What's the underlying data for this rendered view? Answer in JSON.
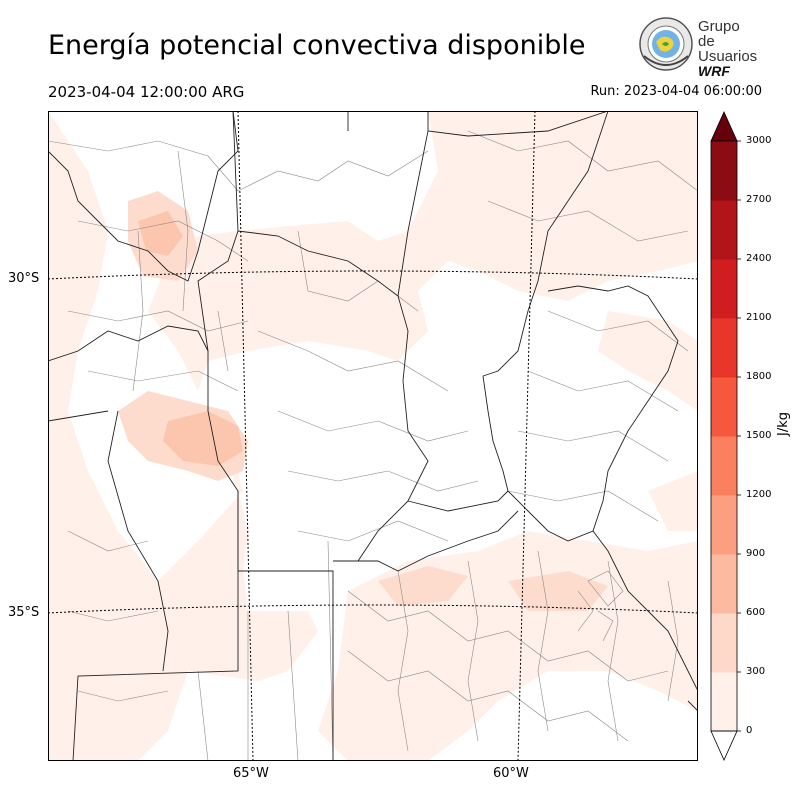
{
  "header": {
    "title": "Energía potencial convectiva disponible",
    "valid_time": "2023-04-04 12:00:00 ARG",
    "run_time": "Run: 2023-04-04 06:00:00"
  },
  "logo": {
    "line1": "Grupo de",
    "line2": "Usuarios",
    "line3": "WRF"
  },
  "map": {
    "lat_labels": [
      "30°S",
      "35°S"
    ],
    "lon_labels": [
      "65°W",
      "60°W"
    ],
    "field_colors": {
      "low": "#fff0ea",
      "mid": "#fddccd",
      "high": "#fcc5ad"
    }
  },
  "colorbar": {
    "unit": "J/kg",
    "levels": [
      0,
      300,
      600,
      900,
      1200,
      1500,
      1800,
      2100,
      2400,
      2700,
      3000
    ],
    "colors": [
      "#fff0ea",
      "#fed9c9",
      "#fcbba0",
      "#fc9f80",
      "#fb8060",
      "#f6583e",
      "#e9362b",
      "#d01d1f",
      "#b11419",
      "#8c0c14",
      "#67000d"
    ],
    "extend_top_color": "#67000d",
    "extend_bottom_color": "#ffffff"
  }
}
